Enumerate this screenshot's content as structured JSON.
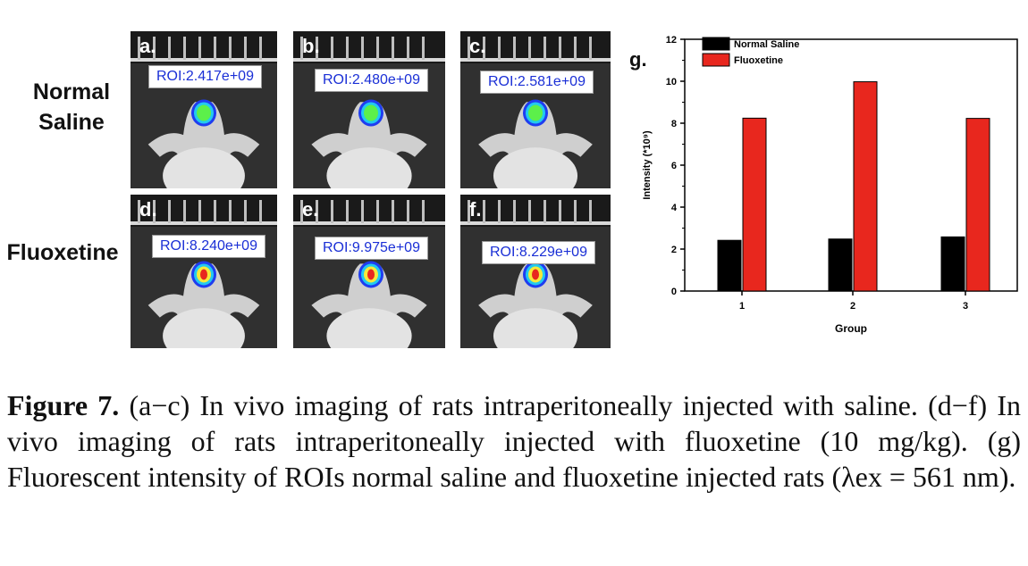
{
  "row_labels": {
    "top_line1": "Normal",
    "top_line2": "Saline",
    "bottom": "Fluoxetine"
  },
  "panels": [
    {
      "label": "a.",
      "roi": "ROI:2.417e+09"
    },
    {
      "label": "b.",
      "roi": "ROI:2.480e+09"
    },
    {
      "label": "c.",
      "roi": "ROI:2.581e+09"
    },
    {
      "label": "d.",
      "roi": "ROI:8.240e+09"
    },
    {
      "label": "e.",
      "roi": "ROI:9.975e+09"
    },
    {
      "label": "f.",
      "roi": "ROI:8.229e+09"
    }
  ],
  "chart_data": {
    "type": "bar",
    "panel_label": "g.",
    "categories": [
      "1",
      "2",
      "3"
    ],
    "series": [
      {
        "name": "Normal Saline",
        "values": [
          2.417,
          2.48,
          2.581
        ],
        "color": "#000000"
      },
      {
        "name": "Fluoxetine",
        "values": [
          8.24,
          9.975,
          8.229
        ],
        "color": "#e8271e"
      }
    ],
    "xlabel": "Group",
    "ylabel": "Intensity (*10⁹)",
    "ylim": [
      0,
      12
    ],
    "yticks": [
      "0",
      "2",
      "4",
      "6",
      "8",
      "10",
      "12"
    ],
    "legend": "top-left",
    "grid": false
  },
  "caption": {
    "label": "Figure 7.",
    "text": " (a−c) In vivo imaging of rats intraperitoneally injected with saline. (d−f) In vivo imaging of rats intraperitoneally injected with fluoxetine (10 mg/kg). (g) Fluorescent intensity of ROIs normal saline and fluoxetine injected rats (λex = 561 nm)."
  }
}
